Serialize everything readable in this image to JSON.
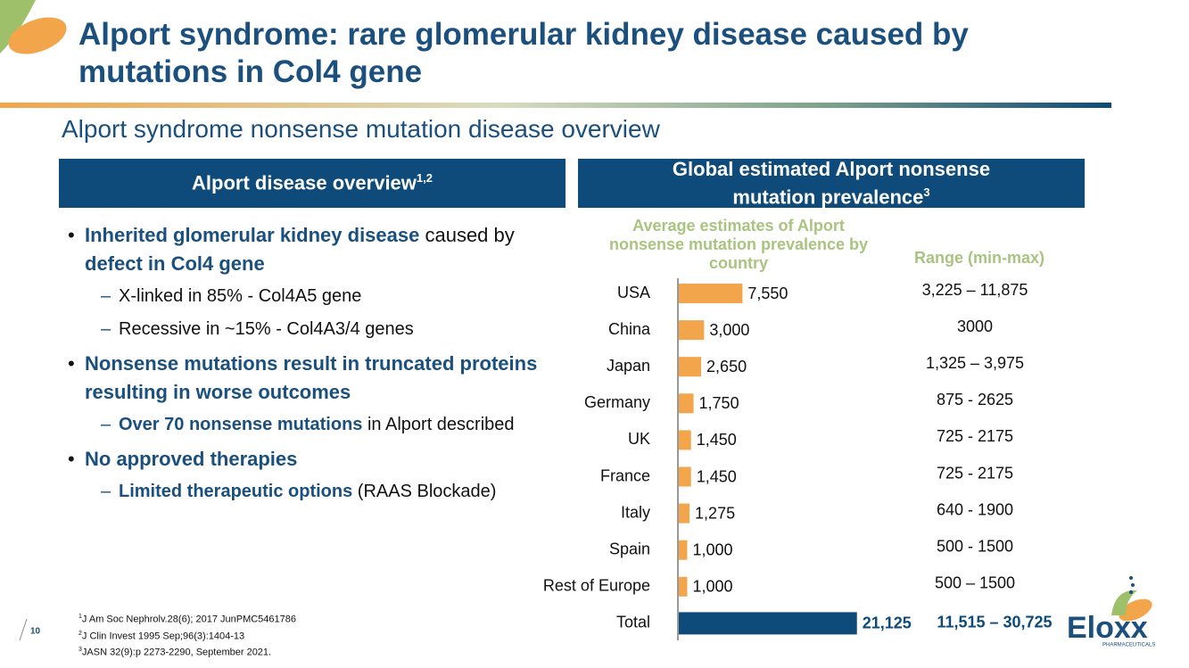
{
  "title": "Alport syndrome: rare glomerular kidney disease caused by mutations in Col4 gene",
  "subtitle": "Alport syndrome nonsense mutation disease overview",
  "left_panel": {
    "header": "Alport disease overview",
    "header_sup": "1,2",
    "bullets": [
      {
        "level": 1,
        "segments": [
          {
            "text": "Inherited glomerular kidney disease",
            "emphasis": true
          },
          {
            "text": " caused by ",
            "emphasis": false
          },
          {
            "text": "defect in Col4 gene",
            "emphasis": true
          }
        ]
      },
      {
        "level": 2,
        "segments": [
          {
            "text": "X-linked in 85% - Col4A5 gene",
            "emphasis": false
          }
        ]
      },
      {
        "level": 2,
        "segments": [
          {
            "text": "Recessive in ~15% - Col4A3/4 genes",
            "emphasis": false
          }
        ]
      },
      {
        "level": 1,
        "segments": [
          {
            "text": "Nonsense mutations result in truncated proteins resulting in worse outcomes",
            "emphasis": true
          }
        ]
      },
      {
        "level": 2,
        "segments": [
          {
            "text": "Over 70 nonsense mutations",
            "emphasis": true
          },
          {
            "text": " in Alport described",
            "emphasis": false
          }
        ]
      },
      {
        "level": 1,
        "segments": [
          {
            "text": "No approved therapies",
            "emphasis": true
          }
        ]
      },
      {
        "level": 2,
        "segments": [
          {
            "text": "Limited therapeutic options",
            "emphasis": true
          },
          {
            "text": " (RAAS Blockade)",
            "emphasis": false
          }
        ]
      }
    ]
  },
  "right_panel": {
    "header": "Global estimated Alport nonsense mutation prevalence",
    "header_sup": "3"
  },
  "chart_data": {
    "type": "bar",
    "orientation": "horizontal",
    "title": "Average estimates of Alport nonsense mutation prevalence by country",
    "categories": [
      "USA",
      "China",
      "Japan",
      "Germany",
      "UK",
      "France",
      "Italy",
      "Spain",
      "Rest of Europe",
      "Total"
    ],
    "values": [
      7550,
      3000,
      2650,
      1750,
      1450,
      1450,
      1275,
      1000,
      1000,
      21125
    ],
    "value_labels": [
      "7,550",
      "3,000",
      "2,650",
      "1,750",
      "1,450",
      "1,450",
      "1,275",
      "1,000",
      "1,000",
      "21,125"
    ],
    "colors": [
      "#f2a54a",
      "#f2a54a",
      "#f2a54a",
      "#f2a54a",
      "#f2a54a",
      "#f2a54a",
      "#f2a54a",
      "#f2a54a",
      "#f2a54a",
      "#0e4a7a"
    ],
    "xlim": [
      0,
      22000
    ],
    "range_header": "Range (min-max)",
    "ranges": [
      "3,225 – 11,875",
      "3000",
      "1,325 – 3,975",
      "875 - 2625",
      "725 - 2175",
      "725 - 2175",
      "640 - 1900",
      "500 - 1500",
      "500 – 1500",
      "11,515 – 30,725"
    ]
  },
  "footnotes": [
    {
      "marker": "1",
      "text": "J Am Soc Nephrolv.28(6); 2017 JunPMC5461786"
    },
    {
      "marker": "2",
      "text": "J Clin Invest 1995 Sep;96(3):1404-13"
    },
    {
      "marker": "3",
      "text": "JASN 32(9):p 2273-2290, September 2021."
    }
  ],
  "page_number": "10",
  "logo": {
    "name": "Eloxx",
    "tagline": "PHARMACEUTICALS"
  }
}
